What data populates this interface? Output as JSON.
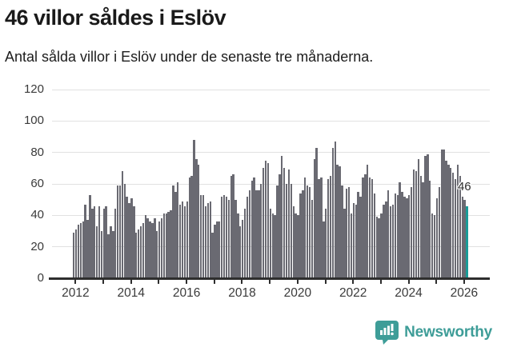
{
  "header": {
    "title": "46 villor såldes i Eslöv",
    "subtitle": "Antal sålda villor i Eslöv under de senaste tre månaderna."
  },
  "chart_data": {
    "type": "bar",
    "title": "46 villor såldes i Eslöv",
    "subtitle": "Antal sålda villor i Eslöv under de senaste tre månaderna.",
    "unit": "sålda villor per 3-månadersperiod (månadsvis serie)",
    "x_start_year": 2012,
    "x_tick_years": [
      2012,
      2013,
      2014,
      2015,
      2016,
      2017,
      2018,
      2019,
      2020,
      2021,
      2022,
      2023,
      2024,
      2025,
      2026
    ],
    "x_label_years": [
      2012,
      2014,
      2016,
      2018,
      2020,
      2022,
      2024,
      2026
    ],
    "y_ticks": [
      0,
      20,
      40,
      60,
      80,
      100,
      120
    ],
    "ylim": [
      0,
      120
    ],
    "grid": true,
    "bar_color": "#6a6a72",
    "values": [
      29,
      31,
      34,
      35,
      36,
      47,
      37,
      53,
      44,
      46,
      33,
      46,
      30,
      44,
      46,
      28,
      33,
      30,
      44,
      59,
      59,
      68,
      60,
      52,
      48,
      51,
      46,
      29,
      31,
      33,
      35,
      40,
      38,
      36,
      35,
      38,
      30,
      36,
      38,
      41,
      41,
      42,
      43,
      59,
      55,
      61,
      47,
      49,
      46,
      49,
      64,
      65,
      88,
      76,
      72,
      53,
      53,
      46,
      48,
      49,
      29,
      34,
      36,
      36,
      52,
      53,
      52,
      50,
      65,
      66,
      50,
      41,
      33,
      37,
      44,
      52,
      56,
      62,
      64,
      56,
      56,
      60,
      70,
      75,
      73,
      44,
      41,
      40,
      59,
      66,
      78,
      70,
      60,
      69,
      60,
      46,
      41,
      40,
      54,
      56,
      64,
      59,
      58,
      50,
      76,
      83,
      63,
      64,
      36,
      44,
      63,
      65,
      83,
      87,
      72,
      71,
      59,
      44,
      57,
      58,
      41,
      48,
      47,
      55,
      52,
      64,
      66,
      72,
      64,
      63,
      54,
      39,
      38,
      41,
      47,
      49,
      56,
      46,
      47,
      54,
      53,
      61,
      55,
      52,
      51,
      53,
      58,
      69,
      68,
      76,
      65,
      61,
      78,
      79,
      62,
      41,
      40,
      51,
      58,
      82,
      82,
      75,
      72,
      70,
      67,
      63,
      72,
      65,
      52,
      50,
      46
    ],
    "highlight": {
      "index": 170,
      "value": 46,
      "label": "46",
      "color": "#199c98"
    }
  },
  "footer": {
    "brand": "Newsworthy",
    "brand_color": "#3e9d98",
    "logo_icon": "bar-chart-speech-bubble"
  },
  "colors": {
    "background": "#ffffff",
    "bar_gray": "#6a6a72",
    "bar_teal": "#199c98",
    "axis": "#2e2e2e",
    "gridline": "#e1e1e1",
    "tick_text": "#3a3a3a"
  }
}
